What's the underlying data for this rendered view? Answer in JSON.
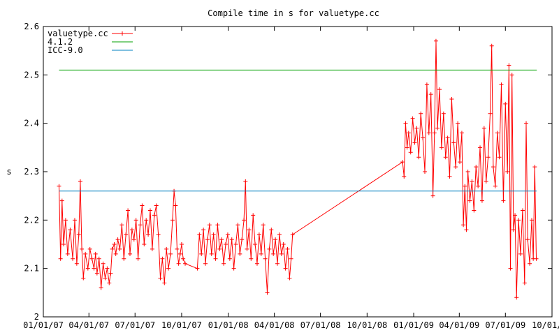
{
  "chart_data": {
    "type": "line",
    "title": "Compile time in s for valuetype.cc",
    "xlabel": "",
    "ylabel": "s",
    "ylim": [
      2,
      2.6
    ],
    "xlim": [
      "2007-01-01",
      "2009-10-01"
    ],
    "y_ticks": [
      "2",
      "2.1",
      "2.2",
      "2.3",
      "2.4",
      "2.5",
      "2.6"
    ],
    "x_ticks": [
      {
        "label": "01/01/07",
        "date": "2007-01-01"
      },
      {
        "label": "04/01/07",
        "date": "2007-04-01"
      },
      {
        "label": "07/01/07",
        "date": "2007-07-01"
      },
      {
        "label": "10/01/07",
        "date": "2007-10-01"
      },
      {
        "label": "01/01/08",
        "date": "2008-01-01"
      },
      {
        "label": "04/01/08",
        "date": "2008-04-01"
      },
      {
        "label": "07/01/08",
        "date": "2008-07-01"
      },
      {
        "label": "10/01/08",
        "date": "2008-10-01"
      },
      {
        "label": "01/01/09",
        "date": "2009-01-01"
      },
      {
        "label": "04/01/09",
        "date": "2009-04-01"
      },
      {
        "label": "07/01/09",
        "date": "2009-07-01"
      },
      {
        "label": "10/01/09",
        "date": "2009-10-01"
      }
    ],
    "grid": false,
    "legend_position": "top-left",
    "series": [
      {
        "name": "valuetype.cc",
        "color": "#ff0000",
        "marker": "plus",
        "points": [
          [
            "2007-02-01",
            2.27
          ],
          [
            "2007-02-04",
            2.12
          ],
          [
            "2007-02-07",
            2.24
          ],
          [
            "2007-02-10",
            2.15
          ],
          [
            "2007-02-14",
            2.2
          ],
          [
            "2007-02-18",
            2.13
          ],
          [
            "2007-02-23",
            2.18
          ],
          [
            "2007-02-28",
            2.12
          ],
          [
            "2007-03-04",
            2.2
          ],
          [
            "2007-03-08",
            2.11
          ],
          [
            "2007-03-12",
            2.17
          ],
          [
            "2007-03-15",
            2.28
          ],
          [
            "2007-03-18",
            2.14
          ],
          [
            "2007-03-21",
            2.08
          ],
          [
            "2007-03-25",
            2.13
          ],
          [
            "2007-03-30",
            2.1
          ],
          [
            "2007-04-03",
            2.14
          ],
          [
            "2007-04-07",
            2.12
          ],
          [
            "2007-04-11",
            2.1
          ],
          [
            "2007-04-14",
            2.13
          ],
          [
            "2007-04-17",
            2.09
          ],
          [
            "2007-04-21",
            2.12
          ],
          [
            "2007-04-25",
            2.06
          ],
          [
            "2007-04-29",
            2.11
          ],
          [
            "2007-05-03",
            2.08
          ],
          [
            "2007-05-07",
            2.1
          ],
          [
            "2007-05-11",
            2.07
          ],
          [
            "2007-05-14",
            2.09
          ],
          [
            "2007-05-17",
            2.14
          ],
          [
            "2007-05-21",
            2.15
          ],
          [
            "2007-05-24",
            2.13
          ],
          [
            "2007-05-28",
            2.16
          ],
          [
            "2007-06-01",
            2.14
          ],
          [
            "2007-06-05",
            2.19
          ],
          [
            "2007-06-09",
            2.12
          ],
          [
            "2007-06-13",
            2.17
          ],
          [
            "2007-06-17",
            2.22
          ],
          [
            "2007-06-21",
            2.13
          ],
          [
            "2007-06-25",
            2.18
          ],
          [
            "2007-06-29",
            2.16
          ],
          [
            "2007-07-03",
            2.2
          ],
          [
            "2007-07-07",
            2.12
          ],
          [
            "2007-07-11",
            2.19
          ],
          [
            "2007-07-15",
            2.23
          ],
          [
            "2007-07-19",
            2.15
          ],
          [
            "2007-07-23",
            2.2
          ],
          [
            "2007-07-27",
            2.17
          ],
          [
            "2007-07-31",
            2.22
          ],
          [
            "2007-08-04",
            2.14
          ],
          [
            "2007-08-08",
            2.21
          ],
          [
            "2007-08-12",
            2.23
          ],
          [
            "2007-08-16",
            2.17
          ],
          [
            "2007-08-20",
            2.08
          ],
          [
            "2007-08-24",
            2.12
          ],
          [
            "2007-08-28",
            2.07
          ],
          [
            "2007-09-01",
            2.14
          ],
          [
            "2007-09-05",
            2.1
          ],
          [
            "2007-09-09",
            2.13
          ],
          [
            "2007-09-13",
            2.2
          ],
          [
            "2007-09-16",
            2.26
          ],
          [
            "2007-09-19",
            2.23
          ],
          [
            "2007-09-22",
            2.14
          ],
          [
            "2007-09-25",
            2.11
          ],
          [
            "2007-09-28",
            2.13
          ],
          [
            "2007-10-01",
            2.15
          ],
          [
            "2007-10-04",
            2.12
          ],
          [
            "2007-10-08",
            2.11
          ],
          [
            "2007-11-01",
            2.1
          ],
          [
            "2007-11-05",
            2.17
          ],
          [
            "2007-11-09",
            2.13
          ],
          [
            "2007-11-13",
            2.18
          ],
          [
            "2007-11-17",
            2.11
          ],
          [
            "2007-11-21",
            2.16
          ],
          [
            "2007-11-25",
            2.19
          ],
          [
            "2007-11-29",
            2.13
          ],
          [
            "2007-12-03",
            2.17
          ],
          [
            "2007-12-07",
            2.12
          ],
          [
            "2007-12-11",
            2.19
          ],
          [
            "2007-12-15",
            2.14
          ],
          [
            "2007-12-19",
            2.16
          ],
          [
            "2007-12-23",
            2.11
          ],
          [
            "2007-12-27",
            2.15
          ],
          [
            "2007-12-31",
            2.17
          ],
          [
            "2008-01-04",
            2.12
          ],
          [
            "2008-01-08",
            2.16
          ],
          [
            "2008-01-12",
            2.1
          ],
          [
            "2008-01-16",
            2.15
          ],
          [
            "2008-01-20",
            2.19
          ],
          [
            "2008-01-24",
            2.13
          ],
          [
            "2008-01-28",
            2.16
          ],
          [
            "2008-02-01",
            2.2
          ],
          [
            "2008-02-04",
            2.28
          ],
          [
            "2008-02-07",
            2.14
          ],
          [
            "2008-02-11",
            2.18
          ],
          [
            "2008-02-15",
            2.12
          ],
          [
            "2008-02-19",
            2.21
          ],
          [
            "2008-02-23",
            2.15
          ],
          [
            "2008-02-27",
            2.11
          ],
          [
            "2008-03-02",
            2.17
          ],
          [
            "2008-03-06",
            2.13
          ],
          [
            "2008-03-10",
            2.19
          ],
          [
            "2008-03-14",
            2.12
          ],
          [
            "2008-03-18",
            2.05
          ],
          [
            "2008-03-22",
            2.14
          ],
          [
            "2008-03-26",
            2.18
          ],
          [
            "2008-03-30",
            2.13
          ],
          [
            "2008-04-03",
            2.16
          ],
          [
            "2008-04-07",
            2.11
          ],
          [
            "2008-04-11",
            2.17
          ],
          [
            "2008-04-15",
            2.13
          ],
          [
            "2008-04-19",
            2.15
          ],
          [
            "2008-04-23",
            2.1
          ],
          [
            "2008-04-27",
            2.14
          ],
          [
            "2008-05-01",
            2.08
          ],
          [
            "2008-05-04",
            2.12
          ],
          [
            "2008-05-07",
            2.17
          ],
          [
            "2008-12-10",
            2.32
          ],
          [
            "2008-12-13",
            2.29
          ],
          [
            "2008-12-16",
            2.4
          ],
          [
            "2008-12-19",
            2.35
          ],
          [
            "2008-12-22",
            2.38
          ],
          [
            "2008-12-26",
            2.34
          ],
          [
            "2008-12-30",
            2.41
          ],
          [
            "2009-01-03",
            2.36
          ],
          [
            "2009-01-07",
            2.39
          ],
          [
            "2009-01-11",
            2.33
          ],
          [
            "2009-01-15",
            2.42
          ],
          [
            "2009-01-19",
            2.37
          ],
          [
            "2009-01-23",
            2.3
          ],
          [
            "2009-01-27",
            2.48
          ],
          [
            "2009-01-31",
            2.38
          ],
          [
            "2009-02-04",
            2.46
          ],
          [
            "2009-02-08",
            2.25
          ],
          [
            "2009-02-11",
            2.38
          ],
          [
            "2009-02-14",
            2.57
          ],
          [
            "2009-02-17",
            2.39
          ],
          [
            "2009-02-21",
            2.47
          ],
          [
            "2009-02-25",
            2.35
          ],
          [
            "2009-03-01",
            2.42
          ],
          [
            "2009-03-05",
            2.33
          ],
          [
            "2009-03-09",
            2.37
          ],
          [
            "2009-03-13",
            2.29
          ],
          [
            "2009-03-17",
            2.45
          ],
          [
            "2009-03-21",
            2.36
          ],
          [
            "2009-03-25",
            2.31
          ],
          [
            "2009-03-29",
            2.4
          ],
          [
            "2009-04-02",
            2.32
          ],
          [
            "2009-04-06",
            2.38
          ],
          [
            "2009-04-09",
            2.19
          ],
          [
            "2009-04-12",
            2.27
          ],
          [
            "2009-04-15",
            2.18
          ],
          [
            "2009-04-18",
            2.3
          ],
          [
            "2009-04-22",
            2.24
          ],
          [
            "2009-04-26",
            2.28
          ],
          [
            "2009-04-30",
            2.22
          ],
          [
            "2009-05-04",
            2.31
          ],
          [
            "2009-05-08",
            2.27
          ],
          [
            "2009-05-12",
            2.35
          ],
          [
            "2009-05-16",
            2.24
          ],
          [
            "2009-05-20",
            2.39
          ],
          [
            "2009-05-24",
            2.28
          ],
          [
            "2009-05-28",
            2.33
          ],
          [
            "2009-06-01",
            2.42
          ],
          [
            "2009-06-04",
            2.56
          ],
          [
            "2009-06-07",
            2.31
          ],
          [
            "2009-06-11",
            2.27
          ],
          [
            "2009-06-15",
            2.38
          ],
          [
            "2009-06-19",
            2.33
          ],
          [
            "2009-06-23",
            2.48
          ],
          [
            "2009-06-27",
            2.24
          ],
          [
            "2009-07-01",
            2.44
          ],
          [
            "2009-07-05",
            2.3
          ],
          [
            "2009-07-08",
            2.52
          ],
          [
            "2009-07-11",
            2.1
          ],
          [
            "2009-07-14",
            2.5
          ],
          [
            "2009-07-17",
            2.18
          ],
          [
            "2009-07-20",
            2.21
          ],
          [
            "2009-07-23",
            2.04
          ],
          [
            "2009-07-27",
            2.2
          ],
          [
            "2009-07-31",
            2.13
          ],
          [
            "2009-08-04",
            2.22
          ],
          [
            "2009-08-08",
            2.07
          ],
          [
            "2009-08-11",
            2.4
          ],
          [
            "2009-08-14",
            2.16
          ],
          [
            "2009-08-18",
            2.11
          ],
          [
            "2009-08-22",
            2.2
          ],
          [
            "2009-08-25",
            2.12
          ],
          [
            "2009-08-28",
            2.31
          ],
          [
            "2009-08-31",
            2.12
          ]
        ]
      },
      {
        "name": "4.1.2",
        "color": "#00a000",
        "points": [
          [
            "2007-02-01",
            2.51
          ],
          [
            "2009-09-01",
            2.51
          ]
        ]
      },
      {
        "name": "ICC-9.0",
        "color": "#0080c0",
        "points": [
          [
            "2007-02-01",
            2.26
          ],
          [
            "2009-09-01",
            2.26
          ]
        ]
      }
    ]
  }
}
